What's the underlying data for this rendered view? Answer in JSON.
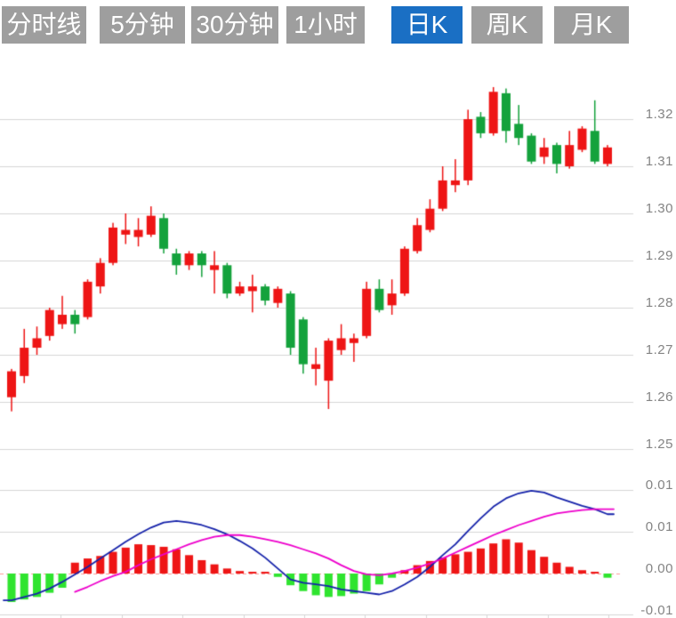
{
  "toolbar": {
    "buttons": [
      {
        "label": "分时线",
        "active": false
      },
      {
        "label": "5分钟",
        "active": false
      },
      {
        "label": "30分钟",
        "active": false
      },
      {
        "label": "1小时",
        "active": false
      },
      {
        "label": "日K",
        "active": true
      },
      {
        "label": "周K",
        "active": false
      },
      {
        "label": "月K",
        "active": false
      }
    ],
    "active_color": "#1a6fc4",
    "inactive_color": "#9e9e9e"
  },
  "colors": {
    "up_red": "#ee1515",
    "down_green": "#14a23c",
    "hist_green": "#2fe42f",
    "dif_blue": "#1522aa",
    "dea_magenta": "#ee00cc",
    "grid": "#d6d6d6",
    "zero_dash": "#ff9c9c",
    "axis_text": "#848484",
    "background": "#ffffff"
  },
  "chart_data": {
    "type": "candlestick_with_macd",
    "period_selected": "日K",
    "price_panel": {
      "y_axis_labels": [
        "1.32",
        "1.31",
        "1.30",
        "1.29",
        "1.28",
        "1.27",
        "1.26",
        "1.25"
      ],
      "y_axis_values": [
        1.32,
        1.31,
        1.3,
        1.29,
        1.28,
        1.27,
        1.26,
        1.25
      ],
      "grid": true,
      "candles_ohlc": [
        [
          1.261,
          1.267,
          1.258,
          1.2665
        ],
        [
          1.2655,
          1.2755,
          1.264,
          1.2715
        ],
        [
          1.2715,
          1.276,
          1.27,
          1.2735
        ],
        [
          1.274,
          1.28,
          1.273,
          1.2795
        ],
        [
          1.2765,
          1.2825,
          1.2755,
          1.2785
        ],
        [
          1.2785,
          1.2795,
          1.2745,
          1.2765
        ],
        [
          1.278,
          1.286,
          1.2775,
          1.2855
        ],
        [
          1.2845,
          1.2905,
          1.283,
          1.2895
        ],
        [
          1.2895,
          1.298,
          1.289,
          1.297
        ],
        [
          1.2955,
          1.3,
          1.2935,
          1.2965
        ],
        [
          1.295,
          1.299,
          1.293,
          1.2965
        ],
        [
          1.2955,
          1.3015,
          1.295,
          1.2995
        ],
        [
          1.299,
          1.3,
          1.2915,
          1.2925
        ],
        [
          1.2915,
          1.2925,
          1.287,
          1.289
        ],
        [
          1.289,
          1.292,
          1.288,
          1.2915
        ],
        [
          1.2915,
          1.292,
          1.2865,
          1.289
        ],
        [
          1.288,
          1.292,
          1.283,
          1.289
        ],
        [
          1.289,
          1.2895,
          1.282,
          1.283
        ],
        [
          1.283,
          1.2855,
          1.2825,
          1.2845
        ],
        [
          1.2835,
          1.287,
          1.279,
          1.2845
        ],
        [
          1.2845,
          1.285,
          1.2805,
          1.2815
        ],
        [
          1.281,
          1.2845,
          1.28,
          1.284
        ],
        [
          1.283,
          1.2835,
          1.27,
          1.2715
        ],
        [
          1.2775,
          1.278,
          1.266,
          1.268
        ],
        [
          1.267,
          1.2715,
          1.2635,
          1.268
        ],
        [
          1.2645,
          1.2735,
          1.2585,
          1.273
        ],
        [
          1.271,
          1.2765,
          1.27,
          1.2735
        ],
        [
          1.2725,
          1.2745,
          1.2685,
          1.2735
        ],
        [
          1.274,
          1.2855,
          1.2735,
          1.284
        ],
        [
          1.284,
          1.286,
          1.279,
          1.2795
        ],
        [
          1.2805,
          1.286,
          1.2785,
          1.283
        ],
        [
          1.283,
          1.293,
          1.2825,
          1.2925
        ],
        [
          1.292,
          1.299,
          1.2915,
          1.2975
        ],
        [
          1.2965,
          1.303,
          1.296,
          1.301
        ],
        [
          1.301,
          1.31,
          1.3005,
          1.307
        ],
        [
          1.306,
          1.3115,
          1.3045,
          1.307
        ],
        [
          1.307,
          1.322,
          1.306,
          1.32
        ],
        [
          1.3205,
          1.3215,
          1.316,
          1.317
        ],
        [
          1.317,
          1.3268,
          1.3165,
          1.3258
        ],
        [
          1.3255,
          1.3265,
          1.315,
          1.3175
        ],
        [
          1.319,
          1.323,
          1.3145,
          1.316
        ],
        [
          1.3165,
          1.317,
          1.3105,
          1.311
        ],
        [
          1.312,
          1.316,
          1.3105,
          1.314
        ],
        [
          1.3145,
          1.315,
          1.3085,
          1.3105
        ],
        [
          1.31,
          1.3175,
          1.3095,
          1.3145
        ],
        [
          1.3135,
          1.3185,
          1.313,
          1.318
        ],
        [
          1.3175,
          1.324,
          1.3105,
          1.311
        ],
        [
          1.3105,
          1.3145,
          1.31,
          1.314
        ]
      ]
    },
    "macd_panel": {
      "y_axis_labels": [
        "0.01",
        "0.01",
        "0.00",
        "-0.01"
      ],
      "y_axis_values": [
        0.01,
        0.005,
        0,
        -0.005
      ],
      "histogram": [
        -0.0034,
        -0.0031,
        -0.0028,
        -0.0023,
        -0.0017,
        0.0013,
        0.0018,
        0.0021,
        0.0026,
        0.0031,
        0.0035,
        0.0034,
        0.0032,
        0.0029,
        0.0022,
        0.0016,
        0.0011,
        0.0006,
        0.0003,
        0.0002,
        0.0001,
        -0.0004,
        -0.0014,
        -0.0021,
        -0.0026,
        -0.0028,
        -0.0027,
        -0.0024,
        -0.0021,
        -0.0013,
        -0.0005,
        0.0004,
        0.001,
        0.0015,
        0.0019,
        0.0023,
        0.0026,
        0.003,
        0.0036,
        0.0041,
        0.0037,
        0.0028,
        0.002,
        0.0013,
        0.0008,
        0.0004,
        0.0002,
        -0.0005
      ],
      "dif_line": [
        -0.0032,
        -0.0028,
        -0.0024,
        -0.0018,
        -0.001,
        -0.0001,
        0.0008,
        0.0018,
        0.0028,
        0.0038,
        0.0047,
        0.0055,
        0.0061,
        0.0063,
        0.0061,
        0.0058,
        0.0053,
        0.0047,
        0.0039,
        0.003,
        0.0019,
        0.0006,
        -0.0007,
        -0.0011,
        -0.0013,
        -0.0015,
        -0.0019,
        -0.0021,
        -0.0023,
        -0.0025,
        -0.0021,
        -0.0013,
        -0.0004,
        0.0008,
        0.0022,
        0.0035,
        0.0051,
        0.0066,
        0.008,
        0.009,
        0.0096,
        0.0099,
        0.0097,
        0.0091,
        0.0086,
        0.0081,
        0.0077,
        0.0071
      ],
      "dea_line": [
        null,
        null,
        null,
        null,
        null,
        -0.0022,
        -0.0016,
        -0.0009,
        -0.0003,
        0.0002,
        0.001,
        0.0017,
        0.0023,
        0.0029,
        0.0035,
        0.004,
        0.0044,
        0.0046,
        0.0046,
        0.0044,
        0.0041,
        0.0038,
        0.0034,
        0.0029,
        0.0024,
        0.0018,
        0.001,
        0.0003,
        -0.0001,
        -0.0002,
        0.0,
        0.0003,
        0.0007,
        0.0012,
        0.0018,
        0.0025,
        0.0032,
        0.0039,
        0.0046,
        0.0052,
        0.0058,
        0.0063,
        0.0068,
        0.0072,
        0.0074,
        0.0076,
        0.0077,
        0.0077
      ]
    }
  }
}
